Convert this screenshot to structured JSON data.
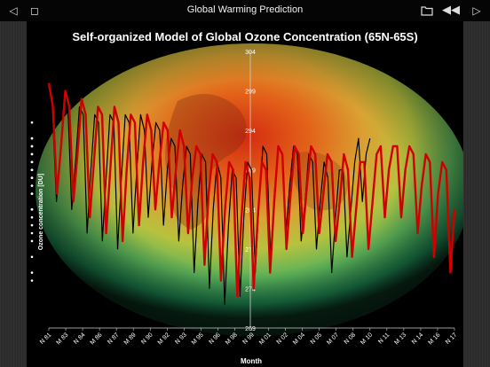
{
  "app": {
    "title": "Global Warming Prediction",
    "icons": [
      "back-icon",
      "square-icon",
      "folder-icon",
      "rewind-icon",
      "play-icon"
    ]
  },
  "chart_data": {
    "type": "line",
    "title": "Self-organized Model of Global Ozone Concentration (65N-65S)",
    "xlabel": "Month",
    "ylabel": "Ozone concentration [DU]",
    "ylim": [
      269,
      304
    ],
    "yticks": [
      269,
      274,
      279,
      284,
      289,
      294,
      299,
      304
    ],
    "xticks": [
      "N 81",
      "M 83",
      "N 84",
      "M 86",
      "N 87",
      "M 89",
      "N 90",
      "M 92",
      "N 93",
      "M 95",
      "N 96",
      "M 98",
      "N 99",
      "M 01",
      "N 02",
      "M 04",
      "N 05",
      "M 07",
      "N 08",
      "M 10",
      "N 11",
      "M 13",
      "N 14",
      "M 16",
      "N 17"
    ],
    "grid": false,
    "colors": {
      "model": "#d00000",
      "observed": "#000000",
      "validation_points": "#ffffff"
    },
    "series": [
      {
        "role": "observed",
        "x_range": [
          "N 81",
          "M 10"
        ],
        "values": [
          298,
          296,
          285,
          291,
          298,
          297,
          284,
          290,
          297,
          296,
          281,
          289,
          296,
          295,
          280,
          288,
          296,
          295,
          279,
          288,
          296,
          295,
          281,
          289,
          296,
          294,
          283,
          290,
          295,
          294,
          282,
          289,
          293,
          292,
          280,
          287,
          292,
          291,
          276,
          285,
          291,
          290,
          274,
          284,
          290,
          288,
          272,
          282,
          289,
          288,
          273,
          283,
          290,
          289,
          276,
          285,
          292,
          291,
          278,
          286,
          292,
          291,
          281,
          287,
          292,
          291,
          280,
          285,
          291,
          290,
          279,
          285,
          290,
          288,
          276,
          283,
          289,
          289,
          278,
          284,
          290,
          293,
          285,
          291,
          293
        ]
      },
      {
        "role": "model",
        "x_range": [
          "N 81",
          "N 17"
        ],
        "values": [
          300,
          297,
          286,
          292,
          299,
          297,
          285,
          291,
          298,
          296,
          283,
          290,
          297,
          296,
          281,
          289,
          297,
          295,
          280,
          289,
          296,
          295,
          282,
          290,
          296,
          294,
          284,
          290,
          295,
          294,
          283,
          289,
          294,
          292,
          281,
          288,
          292,
          291,
          277,
          286,
          291,
          290,
          275,
          284,
          290,
          289,
          273,
          283,
          290,
          288,
          274,
          283,
          290,
          289,
          276,
          285,
          292,
          291,
          279,
          286,
          292,
          291,
          281,
          287,
          292,
          291,
          281,
          286,
          291,
          290,
          280,
          285,
          291,
          289,
          278,
          284,
          290,
          290,
          279,
          285,
          291,
          292,
          283,
          289,
          292,
          292,
          283,
          289,
          292,
          291,
          281,
          287,
          291,
          290,
          278,
          286,
          290,
          289,
          276,
          284
        ]
      },
      {
        "role": "validation_points",
        "x_range": [
          "M 08",
          "M 11"
        ],
        "values": [
          275,
          276,
          278,
          280,
          282,
          284,
          286,
          288,
          289,
          290,
          291,
          289,
          287,
          286,
          283,
          281,
          284,
          287,
          290,
          292,
          295,
          293,
          291,
          293,
          292,
          289,
          290,
          288,
          286,
          284,
          290,
          292
        ]
      }
    ]
  }
}
